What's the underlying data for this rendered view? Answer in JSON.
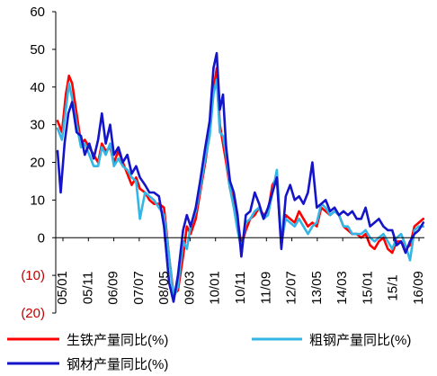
{
  "chart_data": {
    "type": "line",
    "x_tick_labels": [
      "05/01",
      "05/11",
      "06/09",
      "07/07",
      "08/05",
      "09/03",
      "10/01",
      "10/11",
      "11/09",
      "12/07",
      "13/05",
      "14/03",
      "15/01",
      "15/1",
      "16/09"
    ],
    "y_tick_labels": [
      {
        "value": 60,
        "label": "60"
      },
      {
        "value": 50,
        "label": "50"
      },
      {
        "value": 40,
        "label": "40"
      },
      {
        "value": 30,
        "label": "30"
      },
      {
        "value": 20,
        "label": "20"
      },
      {
        "value": 10,
        "label": "10"
      },
      {
        "value": 0,
        "label": "0"
      },
      {
        "value": -10,
        "label": "(10)"
      },
      {
        "value": -20,
        "label": "(20)"
      }
    ],
    "ylim": [
      -20,
      60
    ],
    "legend": "bottom",
    "grid": false,
    "series": [
      {
        "name": "生铁产量同比(%)",
        "color": "#ff0000",
        "values": [
          [
            0,
            31
          ],
          [
            0.7,
            28
          ],
          [
            1.3,
            38
          ],
          [
            1.8,
            43
          ],
          [
            2.3,
            41
          ],
          [
            3,
            33
          ],
          [
            3.7,
            25
          ],
          [
            4.3,
            26
          ],
          [
            5,
            24
          ],
          [
            5.7,
            22
          ],
          [
            6.4,
            20
          ],
          [
            7,
            25
          ],
          [
            7.6,
            23
          ],
          [
            8.3,
            24
          ],
          [
            8.9,
            20
          ],
          [
            9.6,
            23
          ],
          [
            10.3,
            20
          ],
          [
            11,
            17
          ],
          [
            11.7,
            14
          ],
          [
            12.4,
            16
          ],
          [
            13,
            13
          ],
          [
            13.8,
            12
          ],
          [
            14.5,
            10
          ],
          [
            15.2,
            9
          ],
          [
            16,
            9
          ],
          [
            16.8,
            8
          ],
          [
            17.6,
            -5
          ],
          [
            18.3,
            -15
          ],
          [
            19,
            -14
          ],
          [
            19.8,
            -5
          ],
          [
            20.4,
            3
          ],
          [
            21,
            1
          ],
          [
            21.8,
            5
          ],
          [
            22.5,
            12
          ],
          [
            23.3,
            20
          ],
          [
            24,
            28
          ],
          [
            24.6,
            39
          ],
          [
            25.1,
            45
          ],
          [
            25.6,
            30
          ],
          [
            26.1,
            25
          ],
          [
            26.6,
            20
          ],
          [
            27.2,
            13
          ],
          [
            27.8,
            10
          ],
          [
            28.4,
            5
          ],
          [
            29,
            -2
          ],
          [
            29.7,
            2
          ],
          [
            30.4,
            5
          ],
          [
            31.1,
            6
          ],
          [
            31.8,
            8
          ],
          [
            32.5,
            6
          ],
          [
            33.2,
            7
          ],
          [
            33.9,
            14
          ],
          [
            34.6,
            16
          ],
          [
            35.3,
            -2
          ],
          [
            36,
            6
          ],
          [
            36.7,
            5
          ],
          [
            37.4,
            4
          ],
          [
            38.1,
            7
          ],
          [
            38.8,
            5
          ],
          [
            39.5,
            3
          ],
          [
            40.2,
            4
          ],
          [
            40.9,
            3
          ],
          [
            41.6,
            8
          ],
          [
            42.3,
            7
          ],
          [
            43,
            6
          ],
          [
            43.7,
            7
          ],
          [
            44.4,
            6
          ],
          [
            45.1,
            3
          ],
          [
            45.8,
            2
          ],
          [
            46.5,
            1
          ],
          [
            47.2,
            1
          ],
          [
            47.9,
            0
          ],
          [
            48.6,
            1
          ],
          [
            49.3,
            -2
          ],
          [
            50,
            -3
          ],
          [
            50.7,
            -1
          ],
          [
            51.4,
            0
          ],
          [
            52.1,
            -3
          ],
          [
            52.8,
            -4
          ],
          [
            53.5,
            -1
          ],
          [
            54.2,
            -1
          ],
          [
            54.9,
            -3
          ],
          [
            55.6,
            -2
          ],
          [
            56.3,
            3
          ],
          [
            57,
            4
          ],
          [
            57.7,
            5
          ]
        ]
      },
      {
        "name": "粗钢产量同比(%)",
        "color": "#33b5e5",
        "values": [
          [
            0,
            29
          ],
          [
            0.7,
            26
          ],
          [
            1.3,
            34
          ],
          [
            1.8,
            41
          ],
          [
            2.3,
            37
          ],
          [
            3,
            30
          ],
          [
            3.7,
            24
          ],
          [
            4.3,
            25
          ],
          [
            5,
            22
          ],
          [
            5.7,
            19
          ],
          [
            6.4,
            19
          ],
          [
            7,
            24
          ],
          [
            7.6,
            22
          ],
          [
            8.3,
            25
          ],
          [
            8.9,
            19
          ],
          [
            9.6,
            21
          ],
          [
            10.3,
            19
          ],
          [
            11,
            18
          ],
          [
            11.7,
            16
          ],
          [
            12.4,
            15
          ],
          [
            13,
            5
          ],
          [
            13.8,
            12
          ],
          [
            14.5,
            11
          ],
          [
            15.2,
            10
          ],
          [
            16,
            8
          ],
          [
            16.8,
            6
          ],
          [
            17.6,
            -5
          ],
          [
            18.3,
            -16
          ],
          [
            19,
            -13
          ],
          [
            19.8,
            -1
          ],
          [
            20.4,
            -3
          ],
          [
            21,
            3
          ],
          [
            21.8,
            7
          ],
          [
            22.5,
            13
          ],
          [
            23.3,
            21
          ],
          [
            24,
            27
          ],
          [
            24.6,
            38
          ],
          [
            25.1,
            42
          ],
          [
            25.6,
            28
          ],
          [
            26.1,
            27
          ],
          [
            26.6,
            22
          ],
          [
            27.2,
            13
          ],
          [
            27.8,
            8
          ],
          [
            28.4,
            2
          ],
          [
            29,
            -3
          ],
          [
            29.7,
            4
          ],
          [
            30.4,
            5
          ],
          [
            31.1,
            7
          ],
          [
            31.8,
            8
          ],
          [
            32.5,
            5
          ],
          [
            33.2,
            6
          ],
          [
            33.9,
            12
          ],
          [
            34.6,
            18
          ],
          [
            35.3,
            -1
          ],
          [
            36,
            5
          ],
          [
            36.7,
            4
          ],
          [
            37.4,
            3
          ],
          [
            38.1,
            5
          ],
          [
            38.8,
            3
          ],
          [
            39.5,
            1
          ],
          [
            40.2,
            3
          ],
          [
            40.9,
            4
          ],
          [
            41.6,
            9
          ],
          [
            42.3,
            8
          ],
          [
            43,
            6
          ],
          [
            43.7,
            7
          ],
          [
            44.4,
            6
          ],
          [
            45.1,
            3
          ],
          [
            45.8,
            3
          ],
          [
            46.5,
            1
          ],
          [
            47.2,
            1
          ],
          [
            47.9,
            1
          ],
          [
            48.6,
            2
          ],
          [
            49.3,
            0
          ],
          [
            50,
            -1
          ],
          [
            50.7,
            0
          ],
          [
            51.4,
            1
          ],
          [
            52.1,
            -1
          ],
          [
            52.8,
            -3
          ],
          [
            53.5,
            0
          ],
          [
            54.2,
            1
          ],
          [
            54.9,
            -2
          ],
          [
            55.6,
            -6
          ],
          [
            56.3,
            2
          ],
          [
            57,
            3
          ],
          [
            57.7,
            3
          ]
        ]
      },
      {
        "name": "钢材产量同比(%)",
        "color": "#1414c8",
        "values": [
          [
            0,
            23
          ],
          [
            0.5,
            12
          ],
          [
            1.1,
            25
          ],
          [
            1.7,
            33
          ],
          [
            2.3,
            36
          ],
          [
            3,
            28
          ],
          [
            3.7,
            27
          ],
          [
            4.3,
            22
          ],
          [
            5,
            25
          ],
          [
            5.7,
            21
          ],
          [
            6.4,
            26
          ],
          [
            7,
            33
          ],
          [
            7.6,
            25
          ],
          [
            8.3,
            30
          ],
          [
            8.9,
            22
          ],
          [
            9.6,
            24
          ],
          [
            10.3,
            20
          ],
          [
            11,
            22
          ],
          [
            11.7,
            17
          ],
          [
            12.4,
            19
          ],
          [
            13,
            16
          ],
          [
            13.8,
            14
          ],
          [
            14.5,
            12
          ],
          [
            15.2,
            12
          ],
          [
            16,
            11
          ],
          [
            16.8,
            3
          ],
          [
            17.6,
            -12
          ],
          [
            18.3,
            -17
          ],
          [
            19,
            -10
          ],
          [
            19.8,
            2
          ],
          [
            20.4,
            6
          ],
          [
            21,
            3
          ],
          [
            21.8,
            8
          ],
          [
            22.5,
            15
          ],
          [
            23.3,
            24
          ],
          [
            24,
            31
          ],
          [
            24.6,
            45
          ],
          [
            25.1,
            49
          ],
          [
            25.6,
            34
          ],
          [
            26.1,
            38
          ],
          [
            26.6,
            24
          ],
          [
            27.2,
            15
          ],
          [
            27.8,
            12
          ],
          [
            28.4,
            6
          ],
          [
            29,
            -5
          ],
          [
            29.7,
            6
          ],
          [
            30.4,
            7
          ],
          [
            31.1,
            12
          ],
          [
            31.8,
            9
          ],
          [
            32.5,
            5
          ],
          [
            33.2,
            8
          ],
          [
            33.9,
            12
          ],
          [
            34.6,
            16
          ],
          [
            35.3,
            -3
          ],
          [
            36,
            11
          ],
          [
            36.7,
            14
          ],
          [
            37.4,
            10
          ],
          [
            38.1,
            11
          ],
          [
            38.8,
            9
          ],
          [
            39.5,
            12
          ],
          [
            40.2,
            20
          ],
          [
            40.9,
            8
          ],
          [
            41.6,
            9
          ],
          [
            42.3,
            10
          ],
          [
            43,
            7
          ],
          [
            43.7,
            8
          ],
          [
            44.4,
            6
          ],
          [
            45.1,
            7
          ],
          [
            45.8,
            6
          ],
          [
            46.5,
            7
          ],
          [
            47.2,
            5
          ],
          [
            47.9,
            5
          ],
          [
            48.6,
            8
          ],
          [
            49.3,
            3
          ],
          [
            50,
            4
          ],
          [
            50.7,
            5
          ],
          [
            51.4,
            3
          ],
          [
            52.1,
            2
          ],
          [
            52.8,
            2
          ],
          [
            53.5,
            -2
          ],
          [
            54.2,
            -1
          ],
          [
            54.9,
            -4
          ],
          [
            55.6,
            -1
          ],
          [
            56.3,
            1
          ],
          [
            57,
            2
          ],
          [
            57.7,
            4
          ]
        ]
      }
    ]
  }
}
